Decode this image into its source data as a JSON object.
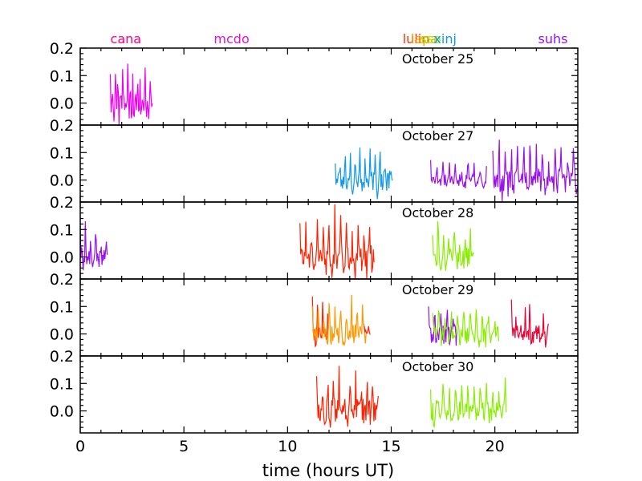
{
  "chart_data": {
    "type": "line",
    "xlabel": "time (hours UT)",
    "xlim": [
      0,
      24
    ],
    "xticks": [
      0,
      5,
      10,
      15,
      20
    ],
    "ylim": [
      -0.08,
      0.2
    ],
    "yticks": [
      0.0,
      0.1,
      0.2
    ],
    "site_labels": [
      {
        "text": "cana",
        "x": 2.2,
        "color": "#e8205f"
      },
      {
        "text": "cana",
        "x": 2.2,
        "color": "#ff1493"
      },
      {
        "text": "mcdo",
        "x": 7.3,
        "color": "#dd11dd"
      },
      {
        "text": "lulin",
        "x": 16.2,
        "color": "#ff3300"
      },
      {
        "text": "lapa",
        "x": 16.6,
        "color": "#ff9900"
      },
      {
        "text": "sso",
        "x": 16.9,
        "color": "#99ee00"
      },
      {
        "text": "xinj",
        "x": 17.6,
        "color": "#1199ee"
      },
      {
        "text": "suhs",
        "x": 22.8,
        "color": "#9911ee"
      }
    ],
    "panels": [
      {
        "date": "October 25",
        "series": [
          {
            "site": "mcdo",
            "color": "#ee00ee",
            "x_start": 1.45,
            "x_end": 3.5,
            "amplitude": 0.15,
            "period": 0.12,
            "baseline": 0.0,
            "seed": 1
          }
        ]
      },
      {
        "date": "October 27",
        "series": [
          {
            "site": "xinj",
            "color": "#1199ee",
            "x_start": 12.3,
            "x_end": 15.1,
            "amplitude": 0.12,
            "period": 0.24,
            "baseline": 0.0,
            "seed": 2
          },
          {
            "site": "suhs",
            "color": "#9911ee",
            "x_start": 16.9,
            "x_end": 19.6,
            "amplitude": 0.08,
            "period": 0.3,
            "baseline": 0.0,
            "seed": 3
          },
          {
            "site": "suhs",
            "color": "#9911ee",
            "x_start": 19.9,
            "x_end": 24.0,
            "amplitude": 0.15,
            "period": 0.3,
            "baseline": 0.0,
            "seed": 4
          }
        ]
      },
      {
        "date": "October 28",
        "series": [
          {
            "site": "suhs",
            "color": "#9911ee",
            "x_start": 0.0,
            "x_end": 1.35,
            "amplitude": 0.12,
            "period": 0.25,
            "baseline": 0.0,
            "seed": 5
          },
          {
            "site": "lulin",
            "color": "#ff2200",
            "x_start": 10.6,
            "x_end": 14.2,
            "amplitude": 0.16,
            "period": 0.28,
            "baseline": 0.0,
            "seed": 6
          },
          {
            "site": "sso",
            "color": "#88ee00",
            "x_start": 17.0,
            "x_end": 19.0,
            "amplitude": 0.14,
            "period": 0.26,
            "baseline": 0.0,
            "seed": 7
          }
        ]
      },
      {
        "date": "October 29",
        "series": [
          {
            "site": "lulin",
            "color": "#ff2200",
            "x_start": 11.2,
            "x_end": 12.0,
            "amplitude": 0.14,
            "period": 0.25,
            "baseline": 0.0,
            "seed": 8
          },
          {
            "site": "lapa",
            "color": "#ff9900",
            "x_start": 11.2,
            "x_end": 13.8,
            "amplitude": 0.13,
            "period": 0.27,
            "baseline": 0.0,
            "seed": 9
          },
          {
            "site": "lulin",
            "color": "#ff2200",
            "x_start": 13.7,
            "x_end": 14.0,
            "amplitude": 0.05,
            "period": 0.2,
            "baseline": 0.0,
            "seed": 10
          },
          {
            "site": "suhs",
            "color": "#9911ee",
            "x_start": 16.8,
            "x_end": 18.2,
            "amplitude": 0.12,
            "period": 0.3,
            "baseline": 0.0,
            "seed": 11
          },
          {
            "site": "sso",
            "color": "#88ee00",
            "x_start": 17.0,
            "x_end": 20.2,
            "amplitude": 0.12,
            "period": 0.3,
            "baseline": 0.0,
            "seed": 12
          },
          {
            "site": "cana",
            "color": "#ee0033",
            "x_start": 20.8,
            "x_end": 22.6,
            "amplitude": 0.12,
            "period": 0.22,
            "baseline": 0.0,
            "seed": 13
          }
        ]
      },
      {
        "date": "October 30",
        "series": [
          {
            "site": "lulin",
            "color": "#ff2200",
            "x_start": 11.4,
            "x_end": 14.4,
            "amplitude": 0.15,
            "period": 0.27,
            "baseline": 0.0,
            "seed": 14
          },
          {
            "site": "sso",
            "color": "#88ee00",
            "x_start": 16.9,
            "x_end": 20.6,
            "amplitude": 0.12,
            "period": 0.3,
            "baseline": 0.0,
            "seed": 15
          }
        ]
      }
    ]
  }
}
